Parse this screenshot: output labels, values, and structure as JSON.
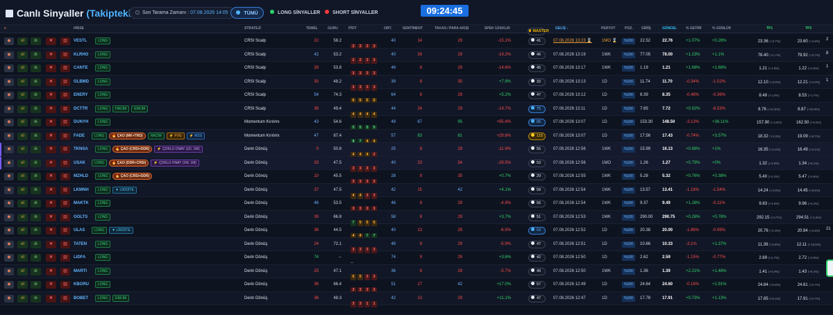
{
  "header": {
    "title_main": "Canlı Sinyaller",
    "title_sub": "(Takiptekiler)",
    "scan_label": "Son Tarama Zamanı :",
    "scan_time": "07.08.2026 14:05",
    "clock": "09:24:45",
    "filters": {
      "all": "TÜMÜ",
      "long": "LONG SİNYALLER",
      "short": "SHORT SİNYALLER"
    }
  },
  "columns": {
    "actions": "≡",
    "hisse": "HİSSE",
    "strateji": "STRATEJİ",
    "temel": "TEMEL",
    "guru": "GURU",
    "piot": "PİOT",
    "ort": "ORT.",
    "sentiment": "SENTİMENT",
    "takas": "TAKAS / PARA AKIŞI",
    "spek": "SPEK UZAKLIK",
    "master": "♛ MASTER",
    "gelis": "GELİŞ ↓",
    "periyot": "PERYOT",
    "poz": "POZ.",
    "giris": "GİRİŞ",
    "guncel": "GÜNCEL",
    "getiri": "% GETİRİ",
    "gunluk": "% GÜNLÜK",
    "tp1": "TP1",
    "tp2": "TP2"
  },
  "action_icons": [
    "target-icon",
    "trend-icon",
    "chart-icon",
    "close-icon",
    "trash-icon"
  ],
  "rows": [
    {
      "symbol": "VESTL",
      "badges": [
        "LONG"
      ],
      "strategy": "CRSI Scalp",
      "temel": "22",
      "temel_c": "red",
      "guru": "58.2",
      "piot": [
        [
          "2",
          "r"
        ],
        [
          "3",
          "r"
        ],
        [
          "3",
          "r"
        ],
        [
          "3",
          "r"
        ]
      ],
      "ort": "40",
      "sent": "14",
      "sent_c": "red",
      "takas": "29",
      "takas_c": "red",
      "spek": "-15.1%",
      "spek_c": "red",
      "master": "41",
      "mclass": "",
      "gelis": "07.08.2026 13:23 ⌛",
      "per": "1MO ⌛",
      "poz": "%100",
      "giris": "22.52",
      "guncel": "22.76",
      "getiri": "+1.07%",
      "getiri_c": "green",
      "gunluk": "+0.26%",
      "gunluk_c": "green",
      "tp1": "23.36",
      "tp1s": "(+3.7%)",
      "tp2": "23.60",
      "tp2s": "(+4.8%)",
      "extra": "2",
      "first": true
    },
    {
      "symbol": "KLRHO",
      "badges": [
        "LONG"
      ],
      "strategy": "CRSI Scalp",
      "temel": "42",
      "temel_c": "blue",
      "guru": "53.2",
      "piot": [
        [
          "2",
          "r"
        ],
        [
          "2",
          "r"
        ],
        [
          "3",
          "r"
        ],
        [
          "3",
          "r"
        ]
      ],
      "ort": "40",
      "sent": "26",
      "sent_c": "red",
      "takas": "29",
      "takas_c": "red",
      "spek": "-19.2%",
      "spek_c": "red",
      "master": "46",
      "mclass": "",
      "gelis": "07.08.2026 13:19",
      "per": "1WK",
      "poz": "%100",
      "giris": "77.05",
      "guncel": "78.00",
      "getiri": "+1.23%",
      "getiri_c": "green",
      "gunluk": "+1.1%",
      "gunluk_c": "green",
      "tp1": "78.40",
      "tp1s": "(+1.7%)",
      "tp2": "79.92",
      "tp2s": "(+3.7%)",
      "extra": "8"
    },
    {
      "symbol": "CANTE",
      "badges": [
        "LONG"
      ],
      "strategy": "CRSI Scalp",
      "temel": "39",
      "temel_c": "red",
      "guru": "53.8",
      "piot": [
        [
          "3",
          "r"
        ],
        [
          "3",
          "r"
        ],
        [
          "3",
          "r"
        ],
        [
          "3",
          "r"
        ]
      ],
      "ort": "46",
      "sent": "8",
      "sent_c": "red",
      "takas": "29",
      "takas_c": "red",
      "spek": "-14.6%",
      "spek_c": "red",
      "master": "45",
      "mclass": "",
      "gelis": "07.08.2026 13:17",
      "per": "1WK",
      "poz": "%100",
      "giris": "1.19",
      "guncel": "1.21",
      "getiri": "+1.68%",
      "getiri_c": "green",
      "gunluk": "+1.68%",
      "gunluk_c": "green",
      "tp1": "1.21",
      "tp1s": "(+1.8%)",
      "tp2": "1.22",
      "tp2s": "(+2.6%)",
      "extra": "1"
    },
    {
      "symbol": "GLBMD",
      "badges": [
        "LONG"
      ],
      "strategy": "CRSI Scalp",
      "temel": "30",
      "temel_c": "red",
      "guru": "48.2",
      "piot": [
        [
          "3",
          "r"
        ],
        [
          "3",
          "r"
        ],
        [
          "3",
          "r"
        ],
        [
          "3",
          "r"
        ]
      ],
      "ort": "39",
      "sent": "8",
      "sent_c": "red",
      "takas": "35",
      "takas_c": "red",
      "spek": "+7.9%",
      "spek_c": "green",
      "master": "32",
      "mclass": "",
      "gelis": "07.08.2026 13:13",
      "per": "1D",
      "poz": "%100",
      "giris": "11.74",
      "guncel": "11.70",
      "getiri": "-0.34%",
      "getiri_c": "red",
      "gunluk": "-1.02%",
      "gunluk_c": "red",
      "tp1": "12.10",
      "tp1s": "(+3.0%)",
      "tp2": "12.21",
      "tp2s": "(+4.0%)",
      "extra": "1"
    },
    {
      "symbol": "ENERY",
      "badges": [
        "LONG"
      ],
      "strategy": "CRSI Scalp",
      "temel": "54",
      "temel_c": "blue",
      "guru": "74.3",
      "piot": [
        [
          "6",
          "o"
        ],
        [
          "5",
          "o"
        ],
        [
          "5",
          "o"
        ],
        [
          "5",
          "o"
        ]
      ],
      "ort": "64",
      "sent": "8",
      "sent_c": "red",
      "takas": "29",
      "takas_c": "red",
      "spek": "+5.2%",
      "spek_c": "green",
      "master": "47",
      "mclass": "",
      "gelis": "07.08.2026 13:12",
      "per": "1D",
      "poz": "%100",
      "giris": "8.39",
      "guncel": "8.35",
      "getiri": "-0.48%",
      "getiri_c": "red",
      "gunluk": "-0.36%",
      "gunluk_c": "red",
      "tp1": "8.48",
      "tp1s": "(+1.0%)",
      "tp2": "8.53",
      "tp2s": "(+1.7%)",
      "extra": ""
    },
    {
      "symbol": "DCTTR",
      "badges": [
        "LONG",
        "HACİM",
        "EMLİM"
      ],
      "strategy": "CRSI Scalp",
      "temel": "38",
      "temel_c": "red",
      "guru": "49.4",
      "piot": [
        [
          "4",
          "o"
        ],
        [
          "4",
          "o"
        ],
        [
          "4",
          "o"
        ],
        [
          "4",
          "o"
        ]
      ],
      "ort": "44",
      "sent": "24",
      "sent_c": "red",
      "takas": "29",
      "takas_c": "red",
      "spek": "-19.7%",
      "spek_c": "red",
      "master": "75",
      "mclass": "blue",
      "gelis": "07.08.2026 13:11",
      "per": "1D",
      "poz": "%100",
      "giris": "7.65",
      "guncel": "7.72",
      "getiri": "+0.92%",
      "getiri_c": "green",
      "gunluk": "-8.53%",
      "gunluk_c": "red",
      "tp1": "8.76",
      "tp1s": "(+14.5%)",
      "tp2": "8.87",
      "tp2s": "(+15.9%)",
      "extra": ""
    },
    {
      "symbol": "DUNYH",
      "badges": [
        "LONG"
      ],
      "strategy": "Momentum Kırılımı",
      "temel": "43",
      "temel_c": "blue",
      "guru": "54.6",
      "piot": [
        [
          "5",
          "g"
        ],
        [
          "5",
          "g"
        ],
        [
          "5",
          "g"
        ],
        [
          "5",
          "g"
        ]
      ],
      "ort": "49",
      "sent": "67",
      "sent_c": "blue",
      "takas": "95",
      "takas_c": "green",
      "spek": "+55.6%",
      "spek_c": "red",
      "master": "65",
      "mclass": "blue",
      "gelis": "07.08.2026 13:07",
      "per": "1D",
      "poz": "%100",
      "giris": "153.30",
      "guncel": "148.50",
      "getiri": "-3.13%",
      "getiri_c": "red",
      "gunluk": "+36.11%",
      "gunluk_c": "green",
      "tp1": "157.90",
      "tp1s": "(+3.0%)",
      "tp2": "162.50",
      "tp2s": "(+6.0%)",
      "extra": ""
    },
    {
      "symbol": "FADE",
      "badges": [
        "LONG",
        "🔥 ÇAO (MK+TRD)",
        "HACİM",
        "⚡ FVG",
        "⚡ MSS"
      ],
      "strategy": "Momentum Kırılımı",
      "temel": "47",
      "temel_c": "blue",
      "guru": "87.4",
      "piot": [
        [
          "8",
          "g"
        ],
        [
          "7",
          "g"
        ],
        [
          "4",
          "o"
        ],
        [
          "4",
          "o"
        ]
      ],
      "ort": "57",
      "sent": "83",
      "sent_c": "green",
      "takas": "81",
      "takas_c": "green",
      "spek": "+29.6%",
      "spek_c": "red",
      "master": "115",
      "mclass": "gold",
      "gelis": "07.08.2026 13:07",
      "per": "1D",
      "poz": "%100",
      "giris": "17.56",
      "guncel": "17.43",
      "getiri": "-0.74%",
      "getiri_c": "red",
      "gunluk": "+3.57%",
      "gunluk_c": "green",
      "tp1": "18.32",
      "tp1s": "(+4.3%)",
      "tp2": "19.09",
      "tp2s": "(+8.7%)",
      "extra": ""
    },
    {
      "symbol": "TKNSA",
      "badges": [
        "LONG",
        "🔥 ÇAO (CRSI+DDR)",
        "⚡ ÇOKLU ONAY (1D, 1W)"
      ],
      "strategy": "Derin Dönüş",
      "temel": "0",
      "temel_c": "red",
      "guru": "50.8",
      "piot": [
        [
          "4",
          "o"
        ],
        [
          "4",
          "o"
        ],
        [
          "4",
          "o"
        ],
        [
          "2",
          "r"
        ]
      ],
      "ort": "25",
      "sent": "8",
      "sent_c": "red",
      "takas": "29",
      "takas_c": "red",
      "spek": "-11.9%",
      "spek_c": "red",
      "master": "55",
      "mclass": "",
      "gelis": "07.08.2026 12:56",
      "per": "1WK",
      "poz": "%100",
      "giris": "15.99",
      "guncel": "16.13",
      "getiri": "+0.88%",
      "getiri_c": "green",
      "gunluk": "+1%",
      "gunluk_c": "green",
      "tp1": "16.35",
      "tp1s": "(+2.2%)",
      "tp2": "16.49",
      "tp2s": "(+3.1%)",
      "extra": "",
      "hl": true
    },
    {
      "symbol": "USAK",
      "badges": [
        "LONG",
        "🔥 ÇAO (DDR+CRSI)",
        "⚡ ÇOKLU ONAY (1W, 1M)"
      ],
      "strategy": "Derin Dönüş",
      "temel": "33",
      "temel_c": "red",
      "guru": "47.5",
      "piot": [
        [
          "3",
          "r"
        ],
        [
          "3",
          "r"
        ],
        [
          "3",
          "r"
        ],
        [
          "3",
          "r"
        ]
      ],
      "ort": "40",
      "sent": "23",
      "sent_c": "red",
      "takas": "34",
      "takas_c": "red",
      "spek": "-29.5%",
      "spek_c": "red",
      "master": "53",
      "mclass": "",
      "gelis": "07.08.2026 12:56",
      "per": "1MO",
      "poz": "%100",
      "giris": "1.26",
      "guncel": "1.27",
      "getiri": "+0.79%",
      "getiri_c": "green",
      "gunluk": "+0%",
      "gunluk_c": "green",
      "tp1": "1.32",
      "tp1s": "(+4.8%)",
      "tp2": "1.34",
      "tp2s": "(+6.1%)",
      "extra": "",
      "hl": true
    },
    {
      "symbol": "MZHLD",
      "badges": [
        "LONG",
        "🔥 ÇAO (CRSI+DDR)"
      ],
      "strategy": "Derin Dönüş",
      "temel": "10",
      "temel_c": "red",
      "guru": "45.5",
      "piot": [
        [
          "3",
          "r"
        ],
        [
          "3",
          "r"
        ],
        [
          "3",
          "r"
        ],
        [
          "3",
          "r"
        ]
      ],
      "ort": "28",
      "sent": "8",
      "sent_c": "red",
      "takas": "35",
      "takas_c": "red",
      "spek": "+0.7%",
      "spek_c": "green",
      "master": "29",
      "mclass": "",
      "gelis": "07.08.2026 12:55",
      "per": "1WK",
      "poz": "%100",
      "giris": "5.28",
      "guncel": "5.32",
      "getiri": "+0.76%",
      "getiri_c": "green",
      "gunluk": "+0.38%",
      "gunluk_c": "green",
      "tp1": "5.40",
      "tp1s": "(+2.2%)",
      "tp2": "5.47",
      "tp2s": "(+3.6%)",
      "extra": ""
    },
    {
      "symbol": "LKMNH",
      "badges": [
        "LONG",
        "▼ LİKİDİTE"
      ],
      "strategy": "Derin Dönüş",
      "temel": "37",
      "temel_c": "red",
      "guru": "47.5",
      "piot": [
        [
          "4",
          "o"
        ],
        [
          "4",
          "o"
        ],
        [
          "3",
          "r"
        ],
        [
          "3",
          "r"
        ]
      ],
      "ort": "42",
      "sent": "15",
      "sent_c": "red",
      "takas": "42",
      "takas_c": "blue",
      "spek": "+4.1%",
      "spek_c": "green",
      "master": "59",
      "mclass": "",
      "gelis": "07.08.2026 12:54",
      "per": "1WK",
      "poz": "%100",
      "giris": "13.57",
      "guncel": "13.41",
      "getiri": "-1.18%",
      "getiri_c": "red",
      "gunluk": "-1.54%",
      "gunluk_c": "red",
      "tp1": "14.24",
      "tp1s": "(+4.9%)",
      "tp2": "14.45",
      "tp2s": "(+6.5%)",
      "extra": ""
    },
    {
      "symbol": "MAKTK",
      "badges": [
        "LONG"
      ],
      "strategy": "Derin Dönüş",
      "temel": "46",
      "temel_c": "blue",
      "guru": "53.5",
      "piot": [
        [
          "3",
          "r"
        ],
        [
          "3",
          "r"
        ],
        [
          "3",
          "r"
        ],
        [
          "3",
          "r"
        ]
      ],
      "ort": "46",
      "sent": "8",
      "sent_c": "red",
      "takas": "29",
      "takas_c": "red",
      "spek": "-4.9%",
      "spek_c": "red",
      "master": "56",
      "mclass": "",
      "gelis": "07.08.2026 12:54",
      "per": "1WK",
      "poz": "%100",
      "giris": "9.37",
      "guncel": "9.49",
      "getiri": "+1.28%",
      "getiri_c": "green",
      "gunluk": "-0.11%",
      "gunluk_c": "red",
      "tp1": "9.83",
      "tp1s": "(+4.9%)",
      "tp2": "9.96",
      "tp2s": "(+6.3%)",
      "extra": ""
    },
    {
      "symbol": "GOLTS",
      "badges": [
        "LONG"
      ],
      "strategy": "Derin Dönüş",
      "temel": "39",
      "temel_c": "red",
      "guru": "66.8",
      "piot": [
        [
          "7",
          "g"
        ],
        [
          "5",
          "o"
        ],
        [
          "5",
          "o"
        ],
        [
          "5",
          "o"
        ]
      ],
      "ort": "58",
      "sent": "8",
      "sent_c": "red",
      "takas": "29",
      "takas_c": "red",
      "spek": "+3.7%",
      "spek_c": "green",
      "master": "51",
      "mclass": "",
      "gelis": "07.08.2026 12:53",
      "per": "1WK",
      "poz": "%100",
      "giris": "290.00",
      "guncel": "290.75",
      "getiri": "+0.26%",
      "getiri_c": "green",
      "gunluk": "+0.78%",
      "gunluk_c": "green",
      "tp1": "292.15",
      "tp1s": "(+0.7%)",
      "tp2": "294.51",
      "tp2s": "(+1.6%)",
      "extra": ""
    },
    {
      "symbol": "ULAS",
      "badges": [
        "LONG",
        "▼ LİKİDİTE"
      ],
      "strategy": "Derin Dönüş",
      "temel": "36",
      "temel_c": "red",
      "guru": "44.5",
      "piot": [
        [
          "4",
          "o"
        ],
        [
          "4",
          "o"
        ],
        [
          "7",
          "g"
        ],
        [
          "7",
          "g"
        ]
      ],
      "ort": "40",
      "sent": "13",
      "sent_c": "red",
      "takas": "29",
      "takas_c": "red",
      "spek": "-6.5%",
      "spek_c": "red",
      "master": "63",
      "mclass": "blue",
      "gelis": "07.08.2026 12:52",
      "per": "1D",
      "poz": "%100",
      "giris": "20.38",
      "guncel": "20.00",
      "getiri": "-1.86%",
      "getiri_c": "red",
      "gunluk": "-0.99%",
      "gunluk_c": "red",
      "tp1": "20.76",
      "tp1s": "(+1.9%)",
      "tp2": "20.94",
      "tp2s": "(+2.8%)",
      "extra": "21"
    },
    {
      "symbol": "TATEN",
      "badges": [
        "LONG"
      ],
      "strategy": "Derin Dönüş",
      "temel": "24",
      "temel_c": "red",
      "guru": "72.1",
      "piot": [
        [
          "3",
          "r"
        ],
        [
          "3",
          "r"
        ],
        [
          "3",
          "r"
        ],
        [
          "3",
          "r"
        ]
      ],
      "ort": "48",
      "sent": "9",
      "sent_c": "red",
      "takas": "29",
      "takas_c": "red",
      "spek": "-5.9%",
      "spek_c": "red",
      "master": "47",
      "mclass": "",
      "gelis": "07.08.2026 12:51",
      "per": "1D",
      "poz": "%100",
      "giris": "10.66",
      "guncel": "10.33",
      "getiri": "-3.1%",
      "getiri_c": "red",
      "gunluk": "+1.37%",
      "gunluk_c": "green",
      "tp1": "11.39",
      "tp1s": "(+6.8%)",
      "tp2": "12.11",
      "tp2s": "(+13.6%)",
      "extra": ""
    },
    {
      "symbol": "LIDFA",
      "badges": [
        "LONG"
      ],
      "strategy": "Derin Dönüş",
      "temel": "74",
      "temel_c": "green",
      "guru": "--",
      "piot": [
        [
          "--",
          "n"
        ]
      ],
      "ort": "74",
      "sent": "9",
      "sent_c": "red",
      "takas": "29",
      "takas_c": "red",
      "spek": "+3.6%",
      "spek_c": "green",
      "master": "42",
      "mclass": "",
      "gelis": "07.08.2026 12:50",
      "per": "1D",
      "poz": "%100",
      "giris": "2.62",
      "guncel": "2.59",
      "getiri": "-1.15%",
      "getiri_c": "red",
      "gunluk": "-0.77%",
      "gunluk_c": "red",
      "tp1": "2.69",
      "tp1s": "(+2.7%)",
      "tp2": "2.72",
      "tp2s": "(+3.8%)",
      "extra": ""
    },
    {
      "symbol": "MARTI",
      "badges": [
        "LONG"
      ],
      "strategy": "Derin Dönüş",
      "temel": "25",
      "temel_c": "red",
      "guru": "47.1",
      "piot": [
        [
          "5",
          "o"
        ],
        [
          "5",
          "o"
        ],
        [
          "3",
          "r"
        ],
        [
          "3",
          "r"
        ]
      ],
      "ort": "36",
      "sent": "8",
      "sent_c": "red",
      "takas": "29",
      "takas_c": "red",
      "spek": "-5.7%",
      "spek_c": "red",
      "master": "49",
      "mclass": "",
      "gelis": "07.08.2026 12:50",
      "per": "1WK",
      "poz": "%100",
      "giris": "1.36",
      "guncel": "1.39",
      "getiri": "+2.21%",
      "getiri_c": "green",
      "gunluk": "+1.46%",
      "gunluk_c": "green",
      "tp1": "1.41",
      "tp1s": "(+4.0%)",
      "tp2": "1.43",
      "tp2s": "(+5.4%)",
      "extra": ""
    },
    {
      "symbol": "KBORU",
      "badges": [
        "LONG"
      ],
      "strategy": "Derin Dönüş",
      "temel": "36",
      "temel_c": "red",
      "guru": "66.4",
      "piot": [
        [
          "3",
          "r"
        ],
        [
          "3",
          "r"
        ],
        [
          "3",
          "r"
        ],
        [
          "3",
          "r"
        ]
      ],
      "ort": "51",
      "sent": "17",
      "sent_c": "red",
      "takas": "42",
      "takas_c": "blue",
      "spek": "+17.0%",
      "spek_c": "green",
      "master": "57",
      "mclass": "",
      "gelis": "07.08.2026 12:49",
      "per": "1D",
      "poz": "%100",
      "giris": "24.64",
      "guncel": "24.60",
      "getiri": "-0.16%",
      "getiri_c": "red",
      "gunluk": "+1.91%",
      "gunluk_c": "green",
      "tp1": "24.84",
      "tp1s": "(+0.8%)",
      "tp2": "24.81",
      "tp2s": "(+0.7%)",
      "extra": ""
    },
    {
      "symbol": "BOBET",
      "badges": [
        "LONG",
        "EMLİM"
      ],
      "strategy": "Derin Dönüş",
      "temel": "36",
      "temel_c": "red",
      "guru": "48.3",
      "piot": [
        [
          "3",
          "r"
        ],
        [
          "3",
          "r"
        ],
        [
          "1",
          "r"
        ],
        [
          "1",
          "r"
        ]
      ],
      "ort": "42",
      "sent": "13",
      "sent_c": "red",
      "takas": "29",
      "takas_c": "red",
      "spek": "+11.1%",
      "spek_c": "green",
      "master": "47",
      "mclass": "",
      "gelis": "07.08.2026 12:47",
      "per": "1D",
      "poz": "%100",
      "giris": "17.78",
      "guncel": "17.91",
      "getiri": "+0.73%",
      "getiri_c": "green",
      "gunluk": "+1.13%",
      "gunluk_c": "green",
      "tp1": "17.85",
      "tp1s": "(+0.4%)",
      "tp2": "17.91",
      "tp2s": "(+0.7%)",
      "extra": ""
    }
  ]
}
